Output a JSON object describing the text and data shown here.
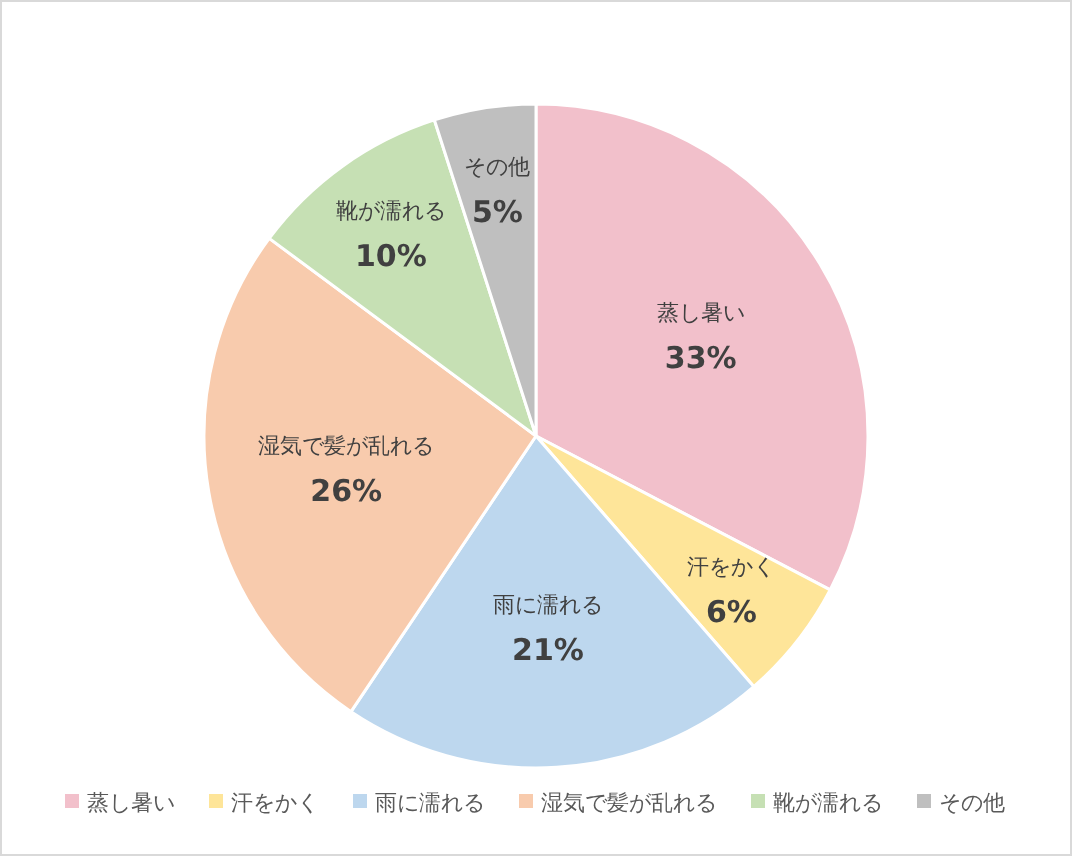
{
  "chart_data": {
    "type": "pie",
    "categories": [
      "蒸し暑い",
      "汗をかく",
      "雨に濡れる",
      "湿気で髪が乱れる",
      "靴が濡れる",
      "その他"
    ],
    "values": [
      33,
      6,
      21,
      26,
      10,
      5
    ],
    "colors": [
      "#f2c0cb",
      "#fee599",
      "#bdd7ee",
      "#f8cbad",
      "#c6e0b4",
      "#bfbfbf"
    ],
    "value_labels": [
      "33%",
      "6%",
      "21%",
      "26%",
      "10%",
      "5%"
    ],
    "legend": "bottom"
  }
}
